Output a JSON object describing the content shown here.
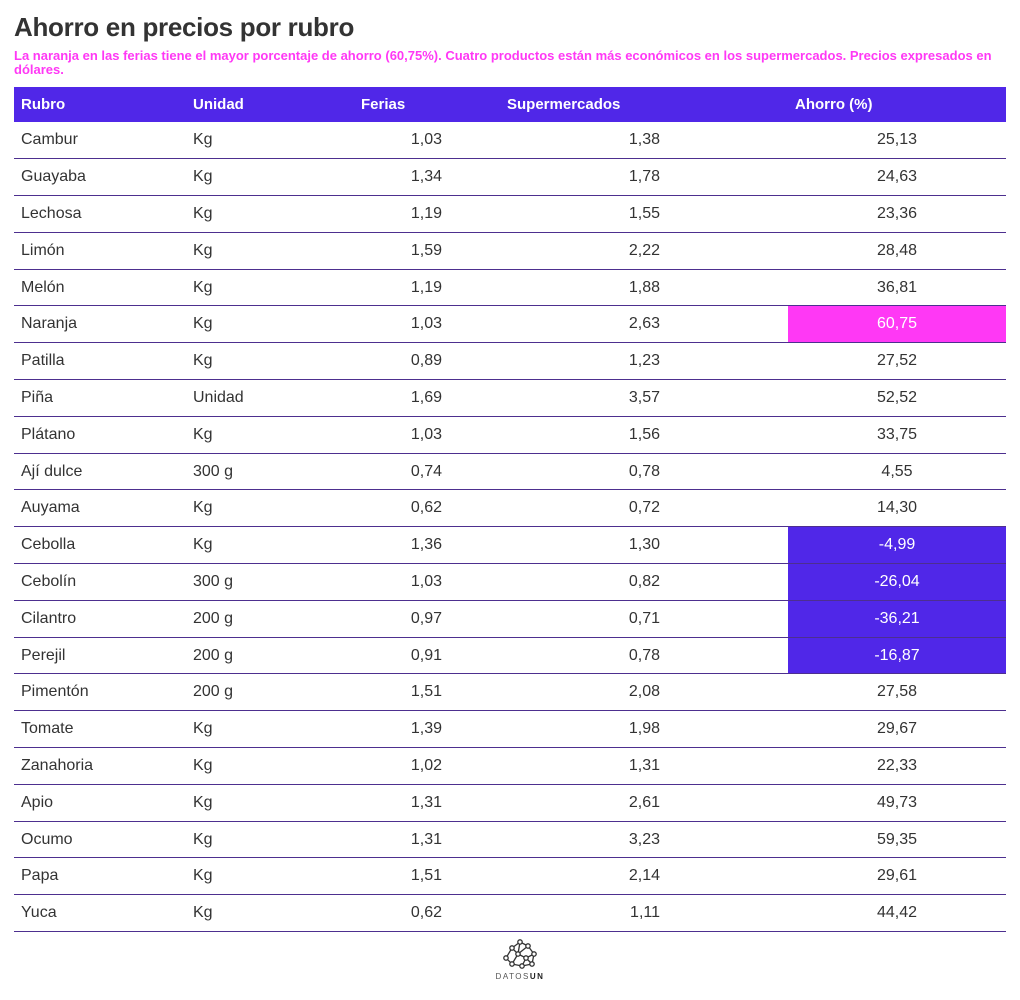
{
  "header": {
    "title": "Ahorro en precios por rubro",
    "subtitle": "La naranja en las ferias tiene el mayor porcentaje de ahorro (60,75%). Cuatro productos están más económicos en los supermercados. Precios expresados en dólares."
  },
  "colors": {
    "header_bg": "#5027e8",
    "highlight_max": "#ff38f5",
    "highlight_negative": "#5027e8",
    "subtitle": "#ff38f5",
    "row_border": "#4d2f8f"
  },
  "table": {
    "columns": [
      "Rubro",
      "Unidad",
      "Ferias",
      "Supermercados",
      "Ahorro (%)"
    ],
    "rows": [
      {
        "rubro": "Cambur",
        "unidad": "Kg",
        "ferias": "1,03",
        "super": "1,38",
        "ahorro": "25,13",
        "hl": ""
      },
      {
        "rubro": "Guayaba",
        "unidad": "Kg",
        "ferias": "1,34",
        "super": "1,78",
        "ahorro": "24,63",
        "hl": ""
      },
      {
        "rubro": "Lechosa",
        "unidad": "Kg",
        "ferias": "1,19",
        "super": "1,55",
        "ahorro": "23,36",
        "hl": ""
      },
      {
        "rubro": "Limón",
        "unidad": "Kg",
        "ferias": "1,59",
        "super": "2,22",
        "ahorro": "28,48",
        "hl": ""
      },
      {
        "rubro": "Melón",
        "unidad": "Kg",
        "ferias": "1,19",
        "super": "1,88",
        "ahorro": "36,81",
        "hl": ""
      },
      {
        "rubro": "Naranja",
        "unidad": "Kg",
        "ferias": "1,03",
        "super": "2,63",
        "ahorro": "60,75",
        "hl": "pink"
      },
      {
        "rubro": "Patilla",
        "unidad": "Kg",
        "ferias": "0,89",
        "super": "1,23",
        "ahorro": "27,52",
        "hl": ""
      },
      {
        "rubro": "Piña",
        "unidad": "Unidad",
        "ferias": "1,69",
        "super": "3,57",
        "ahorro": "52,52",
        "hl": ""
      },
      {
        "rubro": "Plátano",
        "unidad": "Kg",
        "ferias": "1,03",
        "super": "1,56",
        "ahorro": "33,75",
        "hl": ""
      },
      {
        "rubro": "Ají dulce",
        "unidad": "300 g",
        "ferias": "0,74",
        "super": "0,78",
        "ahorro": "4,55",
        "hl": ""
      },
      {
        "rubro": "Auyama",
        "unidad": "Kg",
        "ferias": "0,62",
        "super": "0,72",
        "ahorro": "14,30",
        "hl": ""
      },
      {
        "rubro": "Cebolla",
        "unidad": "Kg",
        "ferias": "1,36",
        "super": "1,30",
        "ahorro": "-4,99",
        "hl": "purple"
      },
      {
        "rubro": "Cebolín",
        "unidad": "300 g",
        "ferias": "1,03",
        "super": "0,82",
        "ahorro": "-26,04",
        "hl": "purple"
      },
      {
        "rubro": "Cilantro",
        "unidad": "200 g",
        "ferias": "0,97",
        "super": "0,71",
        "ahorro": "-36,21",
        "hl": "purple"
      },
      {
        "rubro": "Perejil",
        "unidad": "200 g",
        "ferias": "0,91",
        "super": "0,78",
        "ahorro": "-16,87",
        "hl": "purple"
      },
      {
        "rubro": "Pimentón",
        "unidad": "200 g",
        "ferias": "1,51",
        "super": "2,08",
        "ahorro": "27,58",
        "hl": ""
      },
      {
        "rubro": "Tomate",
        "unidad": "Kg",
        "ferias": "1,39",
        "super": "1,98",
        "ahorro": "29,67",
        "hl": ""
      },
      {
        "rubro": "Zanahoria",
        "unidad": "Kg",
        "ferias": "1,02",
        "super": "1,31",
        "ahorro": "22,33",
        "hl": ""
      },
      {
        "rubro": "Apio",
        "unidad": "Kg",
        "ferias": "1,31",
        "super": "2,61",
        "ahorro": "49,73",
        "hl": ""
      },
      {
        "rubro": "Ocumo",
        "unidad": "Kg",
        "ferias": "1,31",
        "super": "3,23",
        "ahorro": "59,35",
        "hl": ""
      },
      {
        "rubro": "Papa",
        "unidad": "Kg",
        "ferias": "1,51",
        "super": "2,14",
        "ahorro": "29,61",
        "hl": ""
      },
      {
        "rubro": "Yuca",
        "unidad": "Kg",
        "ferias": "0,62",
        "super": "1,11",
        "ahorro": "44,42",
        "hl": ""
      }
    ]
  },
  "footer": {
    "logo_text_light": "DATOS",
    "logo_text_bold": "UN"
  },
  "chart_data": {
    "type": "table",
    "title": "Ahorro en precios por rubro",
    "subtitle": "La naranja en las ferias tiene el mayor porcentaje de ahorro (60,75%). Cuatro productos están más económicos en los supermercados. Precios expresados en dólares.",
    "columns": [
      "Rubro",
      "Unidad",
      "Ferias",
      "Supermercados",
      "Ahorro (%)"
    ],
    "rows": [
      [
        "Cambur",
        "Kg",
        1.03,
        1.38,
        25.13
      ],
      [
        "Guayaba",
        "Kg",
        1.34,
        1.78,
        24.63
      ],
      [
        "Lechosa",
        "Kg",
        1.19,
        1.55,
        23.36
      ],
      [
        "Limón",
        "Kg",
        1.59,
        2.22,
        28.48
      ],
      [
        "Melón",
        "Kg",
        1.19,
        1.88,
        36.81
      ],
      [
        "Naranja",
        "Kg",
        1.03,
        2.63,
        60.75
      ],
      [
        "Patilla",
        "Kg",
        0.89,
        1.23,
        27.52
      ],
      [
        "Piña",
        "Unidad",
        1.69,
        3.57,
        52.52
      ],
      [
        "Plátano",
        "Kg",
        1.03,
        1.56,
        33.75
      ],
      [
        "Ají dulce",
        "300 g",
        0.74,
        0.78,
        4.55
      ],
      [
        "Auyama",
        "Kg",
        0.62,
        0.72,
        14.3
      ],
      [
        "Cebolla",
        "Kg",
        1.36,
        1.3,
        -4.99
      ],
      [
        "Cebolín",
        "300 g",
        1.03,
        0.82,
        -26.04
      ],
      [
        "Cilantro",
        "200 g",
        0.97,
        0.71,
        -36.21
      ],
      [
        "Perejil",
        "200 g",
        0.91,
        0.78,
        -16.87
      ],
      [
        "Pimentón",
        "200 g",
        1.51,
        2.08,
        27.58
      ],
      [
        "Tomate",
        "Kg",
        1.39,
        1.98,
        29.67
      ],
      [
        "Zanahoria",
        "Kg",
        1.02,
        1.31,
        22.33
      ],
      [
        "Apio",
        "Kg",
        1.31,
        2.61,
        49.73
      ],
      [
        "Ocumo",
        "Kg",
        1.31,
        3.23,
        59.35
      ],
      [
        "Papa",
        "Kg",
        1.51,
        2.14,
        29.61
      ],
      [
        "Yuca",
        "Kg",
        0.62,
        1.11,
        44.42
      ]
    ],
    "highlights": {
      "max_saving": {
        "row": "Naranja",
        "color": "#ff38f5"
      },
      "negative_saving": {
        "rows": [
          "Cebolla",
          "Cebolín",
          "Cilantro",
          "Perejil"
        ],
        "color": "#5027e8"
      }
    }
  }
}
